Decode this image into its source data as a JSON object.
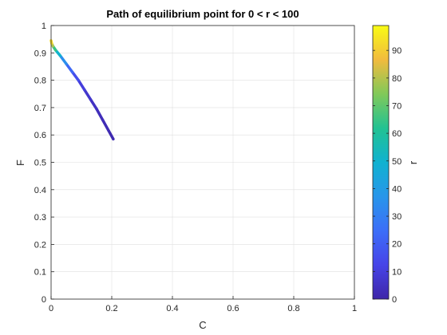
{
  "chart_data": {
    "type": "line",
    "title": "Path of equilibrium point for 0 < r < 100",
    "xlabel": "C",
    "ylabel": "F",
    "xlim": [
      0,
      1
    ],
    "ylim": [
      0,
      1
    ],
    "grid": true,
    "x_ticks": [
      "0",
      "0.2",
      "0.4",
      "0.6",
      "0.8",
      "1"
    ],
    "y_ticks": [
      "0",
      "0.1",
      "0.2",
      "0.3",
      "0.4",
      "0.5",
      "0.6",
      "0.7",
      "0.8",
      "0.9",
      "1"
    ],
    "colorbar": {
      "label": "r",
      "range": [
        0,
        99
      ],
      "ticks": [
        "0",
        "10",
        "20",
        "30",
        "40",
        "50",
        "60",
        "70",
        "80",
        "90"
      ],
      "colormap": "parula",
      "placement": "right"
    },
    "series": [
      {
        "x": [
          0.205,
          0.19,
          0.17,
          0.15,
          0.13,
          0.11,
          0.09,
          0.07,
          0.05,
          0.03,
          0.015,
          0.006,
          0.002,
          0.0
        ],
        "y": [
          0.585,
          0.615,
          0.655,
          0.695,
          0.73,
          0.765,
          0.8,
          0.83,
          0.86,
          0.89,
          0.91,
          0.925,
          0.935,
          0.945
        ],
        "r": [
          1,
          2,
          3,
          4,
          6,
          8,
          12,
          18,
          28,
          42,
          58,
          72,
          86,
          99
        ]
      }
    ]
  }
}
